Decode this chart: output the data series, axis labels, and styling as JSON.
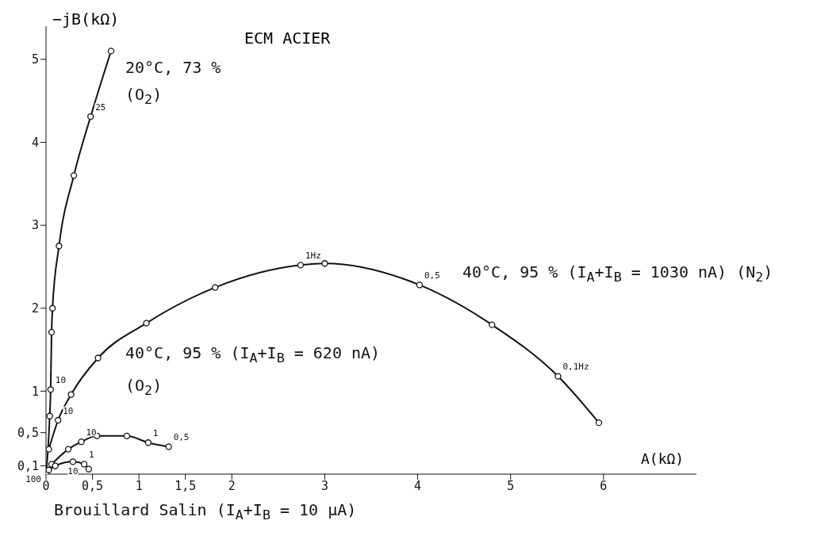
{
  "chart_data": {
    "type": "line",
    "title": "ECM ACIER",
    "xlabel": "A(kΩ)",
    "ylabel": "−jB(kΩ)",
    "xlim": [
      0,
      7
    ],
    "ylim": [
      0,
      5.4
    ],
    "xticks": [
      0,
      {
        "value": 0.5,
        "label": "0,5"
      },
      1,
      {
        "value": 1.5,
        "label": "1,5"
      },
      2,
      3,
      4,
      5,
      6
    ],
    "yticks": [
      {
        "value": 0.1,
        "label": "0,1"
      },
      {
        "value": 0.5,
        "label": "0,5"
      },
      1,
      2,
      3,
      4,
      5
    ],
    "grid": false,
    "marker": "circle",
    "line_style": "solid",
    "series": [
      {
        "name": "20°C, 73 % (O$_{2}$)",
        "color": "#111111",
        "x": [
          0,
          0.04,
          0.05,
          0.06,
          0.07,
          0.14,
          0.3,
          0.48,
          0.7
        ],
        "values": [
          0,
          0.7,
          1.02,
          1.71,
          2.0,
          2.75,
          3.6,
          4.31,
          5.1
        ]
      },
      {
        "name": "40°C, 95 % (I$_{A}$+I$_{B}$ = 1030 nA) (N$_{2}$)",
        "color": "#111111",
        "x": [
          0.03,
          0.13,
          0.27,
          0.56,
          1.08,
          1.82,
          2.74,
          3.0,
          4.02,
          4.8,
          5.51,
          5.95
        ],
        "values": [
          0.3,
          0.65,
          0.96,
          1.4,
          1.82,
          2.25,
          2.52,
          2.54,
          2.28,
          1.8,
          1.18,
          0.62
        ]
      },
      {
        "name": "40°C, 95 % (I$_{A}$+I$_{B}$ = 620 nA) (O$_{2}$)",
        "color": "#111111",
        "x": [
          0.06,
          0.24,
          0.38,
          0.55,
          0.87,
          1.1,
          1.32
        ],
        "values": [
          0.12,
          0.3,
          0.39,
          0.46,
          0.46,
          0.38,
          0.33
        ]
      },
      {
        "name": "Brouillard Salin (I$_{A}$+I$_{B}$ = 10 μA)",
        "color": "#111111",
        "x": [
          0.03,
          0.1,
          0.29,
          0.41,
          0.46
        ],
        "values": [
          0.05,
          0.1,
          0.15,
          0.12,
          0.06
        ]
      }
    ],
    "annotations": [
      {
        "text": "25",
        "x": 0.48,
        "y": 4.31
      },
      {
        "text": "10",
        "x": 0.05,
        "y": 1.02
      },
      {
        "text": "10",
        "x": 0.13,
        "y": 0.65
      },
      {
        "text": "1Hz",
        "x": 2.74,
        "y": 2.52
      },
      {
        "text": "0,5",
        "x": 4.02,
        "y": 2.28
      },
      {
        "text": "0,1Hz",
        "x": 5.51,
        "y": 1.18
      },
      {
        "text": "10",
        "x": 0.38,
        "y": 0.39
      },
      {
        "text": "1",
        "x": 1.1,
        "y": 0.38
      },
      {
        "text": "0,5",
        "x": 1.32,
        "y": 0.33
      },
      {
        "text": "10",
        "x": 0.29,
        "y": 0.15
      },
      {
        "text": "1",
        "x": 0.41,
        "y": 0.12
      },
      {
        "text": "100",
        "x": 0,
        "y": 0
      }
    ]
  }
}
